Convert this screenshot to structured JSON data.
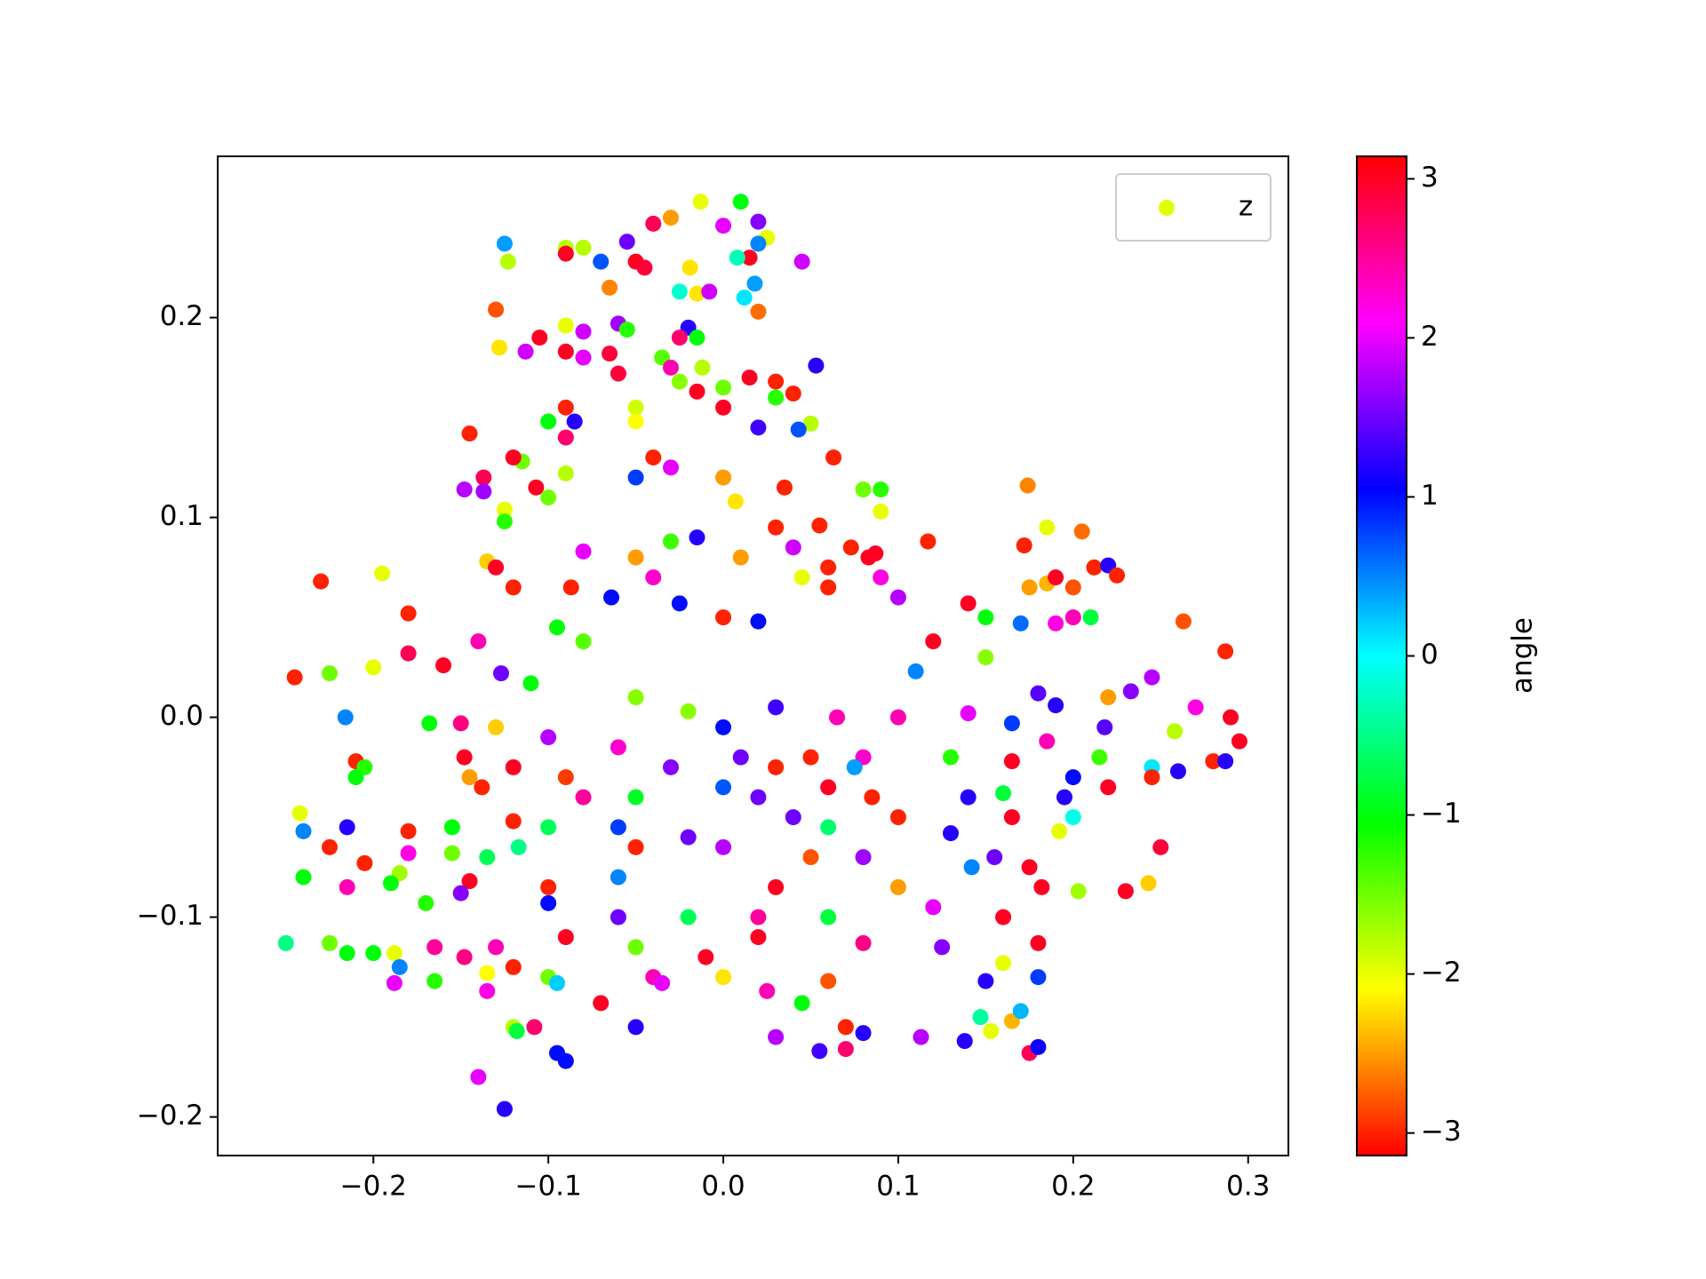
{
  "chart_data": {
    "type": "scatter",
    "xlim": [
      -0.289,
      0.323
    ],
    "ylim": [
      -0.2193,
      0.2807
    ],
    "xticks": [
      {
        "value": -0.2,
        "label": "−0.2"
      },
      {
        "value": -0.1,
        "label": "−0.1"
      },
      {
        "value": 0,
        "label": "0.0"
      },
      0.1,
      0.2,
      0.3
    ],
    "yticks": [
      {
        "value": -0.2,
        "label": "−0.2"
      },
      {
        "value": -0.1,
        "label": "−0.1"
      },
      {
        "value": 0,
        "label": "0.0"
      },
      0.1,
      0.2
    ],
    "colormap": "hsv",
    "clim": [
      -3.1416,
      3.1416
    ],
    "cticks": [
      {
        "value": -3,
        "label": "−3"
      },
      {
        "value": -2,
        "label": "−2"
      },
      {
        "value": -1,
        "label": "−1"
      },
      0,
      1,
      2,
      3
    ],
    "colorbar_label": "angle",
    "legend": "upper right",
    "grid": false,
    "series": [
      {
        "name": "z",
        "color": "#e0ff00",
        "x": [
          -0.013,
          0.01,
          -0.03,
          -0.04,
          0.02,
          0.0,
          0.025,
          -0.055,
          -0.125,
          -0.09,
          -0.08,
          -0.09,
          0.02,
          -0.05,
          0.045,
          0.015,
          0.008,
          -0.07,
          -0.019,
          -0.045,
          -0.123,
          -0.065,
          0.018,
          -0.025,
          -0.015,
          -0.008,
          0.012,
          -0.13,
          0.02,
          -0.06,
          -0.09,
          -0.08,
          -0.055,
          -0.02,
          -0.025,
          -0.015,
          -0.105,
          -0.113,
          -0.128,
          -0.09,
          -0.035,
          -0.065,
          -0.08,
          -0.03,
          -0.012,
          0.053,
          -0.06,
          0.015,
          0.03,
          -0.025,
          0.0,
          -0.015,
          0.04,
          0.03,
          -0.05,
          -0.09,
          0.0,
          -0.05,
          0.05,
          0.043,
          -0.085,
          -0.1,
          0.02,
          -0.09,
          -0.145,
          0.063,
          -0.04,
          -0.115,
          -0.12,
          -0.03,
          0.0,
          -0.05,
          -0.09,
          -0.137,
          -0.107,
          0.035,
          0.08,
          0.09,
          -0.148,
          -0.137,
          -0.1,
          -0.125,
          0.09,
          0.007,
          -0.125,
          0.03,
          0.055,
          -0.015,
          -0.03,
          0.04,
          0.073,
          0.087,
          -0.08,
          0.117,
          -0.05,
          0.01,
          -0.135,
          -0.13,
          0.06,
          0.083,
          -0.195,
          -0.23,
          -0.04,
          0.045,
          0.09,
          -0.12,
          -0.087,
          -0.064,
          0.06,
          0.1,
          0.14,
          0.172,
          0.174,
          0.185,
          0.205,
          0.212,
          0.22,
          0.225,
          0.185,
          0.19,
          0.2,
          0.21,
          0.175,
          -0.025,
          0.02,
          0.0,
          -0.18,
          -0.14,
          -0.095,
          -0.08,
          0.263,
          0.15,
          0.17,
          0.19,
          0.2,
          -0.18,
          -0.16,
          -0.2,
          -0.225,
          -0.245,
          -0.127,
          -0.11,
          0.12,
          0.287,
          0.245,
          0.11,
          0.15,
          0.22,
          0.233,
          0.19,
          0.18,
          0.27,
          0.29,
          -0.216,
          -0.15,
          -0.168,
          0.065,
          0.03,
          -0.02,
          0.0,
          -0.05,
          0.1,
          0.14,
          0.165,
          0.218,
          0.258,
          0.295,
          0.185,
          -0.13,
          -0.1,
          -0.06,
          0.01,
          0.05,
          0.08,
          0.13,
          -0.21,
          -0.205,
          -0.148,
          -0.12,
          0.165,
          0.215,
          0.28,
          0.287,
          0.245,
          0.26,
          0.245,
          -0.21,
          -0.145,
          -0.09,
          -0.03,
          0.03,
          0.075,
          -0.138,
          0.0,
          0.06,
          0.2,
          0.22,
          0.195,
          0.14,
          0.16,
          -0.08,
          -0.05,
          0.02,
          0.085,
          -0.242,
          -0.215,
          -0.18,
          -0.155,
          -0.12,
          -0.1,
          -0.06,
          -0.02,
          0.04,
          0.06,
          0.1,
          0.13,
          0.165,
          0.2,
          -0.24,
          -0.225,
          -0.18,
          -0.155,
          -0.135,
          -0.117,
          -0.05,
          0.0,
          0.05,
          0.08,
          0.155,
          0.175,
          0.25,
          -0.205,
          -0.185,
          -0.24,
          -0.215,
          -0.19,
          -0.145,
          -0.1,
          -0.06,
          0.03,
          0.1,
          0.142,
          0.182,
          0.203,
          0.243,
          -0.17,
          -0.15,
          -0.1,
          -0.06,
          -0.02,
          0.02,
          0.06,
          0.12,
          0.16,
          0.23,
          -0.25,
          -0.225,
          -0.215,
          -0.2,
          -0.188,
          -0.165,
          -0.148,
          -0.13,
          -0.12,
          -0.09,
          -0.05,
          -0.01,
          0.02,
          0.08,
          0.125,
          0.18,
          -0.185,
          -0.165,
          -0.135,
          -0.1,
          -0.04,
          0.0,
          0.06,
          0.15,
          0.18,
          -0.188,
          -0.135,
          -0.095,
          -0.07,
          -0.035,
          0.025,
          0.045,
          -0.12,
          -0.108,
          -0.118,
          -0.05,
          0.03,
          0.055,
          0.07,
          0.08,
          0.113,
          0.138,
          0.147,
          0.153,
          0.165,
          0.17,
          0.175,
          0.18,
          -0.095,
          -0.09,
          -0.14,
          -0.125,
          0.07,
          0.16,
          0.192
        ],
        "y": [
          0.258,
          0.258,
          0.25,
          0.247,
          0.248,
          0.246,
          0.24,
          0.238,
          0.237,
          0.235,
          0.235,
          0.232,
          0.237,
          0.228,
          0.228,
          0.23,
          0.23,
          0.228,
          0.225,
          0.225,
          0.228,
          0.215,
          0.217,
          0.213,
          0.212,
          0.213,
          0.21,
          0.204,
          0.203,
          0.197,
          0.196,
          0.193,
          0.194,
          0.195,
          0.19,
          0.19,
          0.19,
          0.183,
          0.185,
          0.183,
          0.18,
          0.182,
          0.18,
          0.175,
          0.175,
          0.176,
          0.172,
          0.17,
          0.168,
          0.168,
          0.165,
          0.163,
          0.162,
          0.16,
          0.155,
          0.155,
          0.155,
          0.148,
          0.147,
          0.144,
          0.148,
          0.148,
          0.145,
          0.14,
          0.142,
          0.13,
          0.13,
          0.128,
          0.13,
          0.125,
          0.12,
          0.12,
          0.122,
          0.12,
          0.115,
          0.115,
          0.114,
          0.114,
          0.114,
          0.113,
          0.11,
          0.104,
          0.103,
          0.108,
          0.098,
          0.095,
          0.096,
          0.09,
          0.088,
          0.085,
          0.085,
          0.082,
          0.083,
          0.088,
          0.08,
          0.08,
          0.078,
          0.075,
          0.075,
          0.08,
          0.072,
          0.068,
          0.07,
          0.07,
          0.07,
          0.065,
          0.065,
          0.06,
          0.065,
          0.06,
          0.057,
          0.086,
          0.116,
          0.095,
          0.093,
          0.075,
          0.076,
          0.071,
          0.067,
          0.07,
          0.065,
          0.05,
          0.065,
          0.057,
          0.048,
          0.05,
          0.052,
          0.038,
          0.045,
          0.038,
          0.048,
          0.05,
          0.047,
          0.047,
          0.05,
          0.032,
          0.026,
          0.025,
          0.022,
          0.02,
          0.022,
          0.017,
          0.038,
          0.033,
          0.02,
          0.023,
          0.03,
          0.01,
          0.013,
          0.006,
          0.012,
          0.005,
          0.0,
          0.0,
          -0.003,
          -0.003,
          0.0,
          0.005,
          0.003,
          -0.005,
          0.01,
          0.0,
          0.002,
          -0.003,
          -0.005,
          -0.007,
          -0.012,
          -0.012,
          -0.005,
          -0.01,
          -0.015,
          -0.02,
          -0.02,
          -0.02,
          -0.02,
          -0.022,
          -0.025,
          -0.02,
          -0.025,
          -0.022,
          -0.02,
          -0.022,
          -0.022,
          -0.025,
          -0.027,
          -0.03,
          -0.03,
          -0.03,
          -0.03,
          -0.025,
          -0.025,
          -0.025,
          -0.035,
          -0.035,
          -0.035,
          -0.03,
          -0.035,
          -0.04,
          -0.04,
          -0.038,
          -0.04,
          -0.04,
          -0.04,
          -0.04,
          -0.048,
          -0.055,
          -0.057,
          -0.055,
          -0.052,
          -0.055,
          -0.055,
          -0.06,
          -0.05,
          -0.055,
          -0.05,
          -0.058,
          -0.05,
          -0.05,
          -0.057,
          -0.065,
          -0.068,
          -0.068,
          -0.07,
          -0.065,
          -0.065,
          -0.065,
          -0.07,
          -0.07,
          -0.07,
          -0.075,
          -0.065,
          -0.073,
          -0.078,
          -0.08,
          -0.085,
          -0.083,
          -0.082,
          -0.085,
          -0.08,
          -0.085,
          -0.085,
          -0.075,
          -0.085,
          -0.087,
          -0.083,
          -0.093,
          -0.088,
          -0.093,
          -0.1,
          -0.1,
          -0.1,
          -0.1,
          -0.095,
          -0.1,
          -0.087,
          -0.113,
          -0.113,
          -0.118,
          -0.118,
          -0.118,
          -0.115,
          -0.12,
          -0.115,
          -0.125,
          -0.11,
          -0.115,
          -0.12,
          -0.11,
          -0.113,
          -0.115,
          -0.113,
          -0.125,
          -0.132,
          -0.128,
          -0.13,
          -0.13,
          -0.13,
          -0.132,
          -0.132,
          -0.13,
          -0.133,
          -0.137,
          -0.133,
          -0.143,
          -0.133,
          -0.137,
          -0.143,
          -0.155,
          -0.155,
          -0.157,
          -0.155,
          -0.16,
          -0.167,
          -0.155,
          -0.158,
          -0.16,
          -0.162,
          -0.15,
          -0.157,
          -0.152,
          -0.147,
          -0.168,
          -0.165,
          -0.168,
          -0.172,
          -0.18,
          -0.196,
          -0.166,
          -0.123,
          -0.057
        ],
        "c": [
          -2.0,
          -1.0,
          -2.5,
          2.8,
          1.6,
          2.0,
          -2.0,
          1.5,
          0.4,
          -1.8,
          -1.8,
          3.0,
          0.5,
          3.0,
          1.9,
          3.0,
          -0.3,
          0.7,
          -2.2,
          2.9,
          -1.8,
          -2.6,
          0.4,
          -0.2,
          -2.2,
          1.9,
          0.1,
          -2.8,
          -2.7,
          1.7,
          -2.0,
          1.9,
          -1.2,
          1.2,
          2.7,
          -1.0,
          3.0,
          1.9,
          -2.2,
          3.0,
          -1.4,
          2.9,
          2.0,
          2.4,
          -1.8,
          1.2,
          2.9,
          3.0,
          -3.0,
          -1.6,
          -1.5,
          3.0,
          -3.0,
          -1.2,
          -1.9,
          -3.0,
          3.0,
          -2.1,
          -1.8,
          0.7,
          1.2,
          -1.0,
          1.3,
          2.7,
          -3.0,
          -3.0,
          -3.0,
          -1.5,
          3.0,
          2.0,
          -2.5,
          0.8,
          -1.8,
          2.8,
          3.0,
          -3.0,
          -1.5,
          -1.2,
          1.8,
          1.7,
          -1.5,
          -2.0,
          -2.0,
          -2.2,
          -1.2,
          -3.0,
          -3.0,
          1.2,
          -1.3,
          1.9,
          -3.0,
          3.0,
          2.0,
          -3.0,
          -2.5,
          -2.5,
          -2.3,
          3.0,
          -3.0,
          3.0,
          -2.0,
          -3.0,
          2.3,
          -2.0,
          2.2,
          -3.0,
          -3.0,
          1.0,
          -3.0,
          1.8,
          3.0,
          -3.0,
          -2.6,
          -2.0,
          -2.7,
          -3.0,
          1.2,
          -3.0,
          -2.4,
          3.0,
          -2.8,
          -0.8,
          -2.5,
          1.0,
          1.0,
          -3.0,
          -3.0,
          2.4,
          -1.0,
          -1.4,
          -2.8,
          -1.0,
          0.6,
          2.2,
          2.4,
          2.8,
          3.0,
          -2.0,
          -1.5,
          -3.0,
          1.5,
          -1.0,
          3.0,
          -3.0,
          1.8,
          0.5,
          -1.6,
          -2.5,
          1.6,
          1.2,
          1.4,
          2.2,
          3.0,
          0.5,
          2.6,
          -1.0,
          2.4,
          1.3,
          -1.6,
          1.0,
          -1.6,
          2.4,
          2.0,
          0.8,
          1.4,
          -1.8,
          3.0,
          2.4,
          -2.3,
          1.8,
          2.3,
          1.5,
          -3.0,
          2.3,
          -1.2,
          -3.0,
          -1.2,
          3.0,
          3.0,
          3.0,
          -1.3,
          -3.0,
          1.2,
          0.1,
          1.2,
          -3.0,
          -1.0,
          -2.5,
          -2.9,
          1.6,
          -3.0,
          0.4,
          -3.0,
          0.7,
          3.0,
          1.0,
          3.0,
          1.2,
          1.2,
          -0.8,
          2.5,
          -0.9,
          1.5,
          -3.0,
          -2.0,
          1.2,
          -3.0,
          -1.0,
          -3.0,
          -0.7,
          0.8,
          1.5,
          1.5,
          -0.6,
          -3.0,
          1.2,
          3.0,
          -0.1,
          0.5,
          -3.0,
          2.2,
          -1.5,
          -0.7,
          -0.5,
          -3.0,
          1.8,
          -2.8,
          1.7,
          1.5,
          3.0,
          2.9,
          -3.0,
          -1.7,
          -1.0,
          2.4,
          -1.0,
          3.0,
          -3.0,
          0.5,
          3.0,
          -2.5,
          0.5,
          3.0,
          -1.7,
          -2.3,
          -1.2,
          1.6,
          1.0,
          1.5,
          -0.7,
          2.5,
          -0.8,
          2.0,
          3.0,
          3.0,
          -0.5,
          -1.5,
          -1.0,
          -1.0,
          -2.0,
          2.5,
          2.6,
          2.4,
          -3.0,
          3.0,
          -1.5,
          3.0,
          3.0,
          2.6,
          1.6,
          3.0,
          0.5,
          -1.2,
          -2.1,
          -1.5,
          2.4,
          -2.2,
          -2.8,
          1.2,
          0.8,
          2.0,
          2.2,
          0.2,
          3.0,
          2.0,
          2.4,
          -1.0,
          -1.8,
          2.7,
          -0.8,
          1.2,
          1.8,
          1.3,
          -3.0,
          1.2,
          1.8,
          1.2,
          -0.4,
          -2.0,
          -2.4,
          0.3,
          2.8,
          1.1,
          1.0,
          1.0,
          2.0,
          1.2,
          2.7,
          -2.0,
          -2.0
        ]
      }
    ]
  }
}
